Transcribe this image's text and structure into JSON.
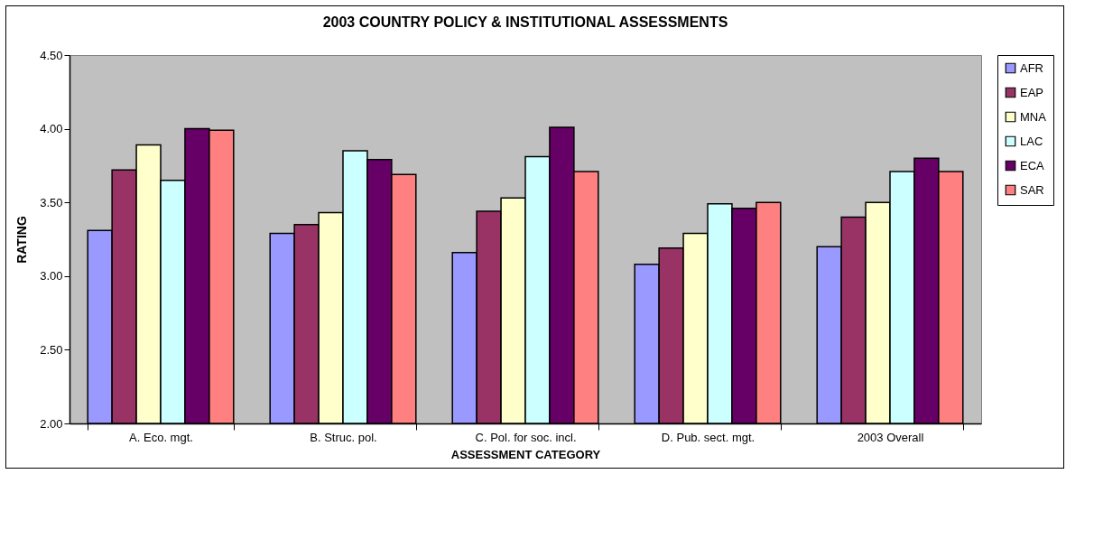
{
  "chart_data": {
    "type": "bar",
    "title": "2003 COUNTRY POLICY & INSTITUTIONAL ASSESSMENTS",
    "xlabel": "ASSESSMENT CATEGORY",
    "ylabel": "RATING",
    "categories": [
      "A. Eco. mgt.",
      "B. Struc. pol.",
      "C. Pol. for soc. incl.",
      "D. Pub. sect. mgt.",
      "2003 Overall"
    ],
    "series": [
      {
        "name": "AFR",
        "color": "#9999ff",
        "values": [
          3.31,
          3.29,
          3.16,
          3.08,
          3.2
        ]
      },
      {
        "name": "EAP",
        "color": "#993366",
        "values": [
          3.72,
          3.35,
          3.44,
          3.19,
          3.4
        ]
      },
      {
        "name": "MNA",
        "color": "#ffffcc",
        "values": [
          3.89,
          3.43,
          3.53,
          3.29,
          3.5
        ]
      },
      {
        "name": "LAC",
        "color": "#ccffff",
        "values": [
          3.65,
          3.85,
          3.81,
          3.49,
          3.71
        ]
      },
      {
        "name": "ECA",
        "color": "#660066",
        "values": [
          4.0,
          3.79,
          4.01,
          3.46,
          3.8
        ]
      },
      {
        "name": "SAR",
        "color": "#ff8080",
        "values": [
          3.99,
          3.69,
          3.71,
          3.5,
          3.71
        ]
      }
    ],
    "ylim": [
      2,
      4.5
    ],
    "yticks": [
      {
        "value": 2,
        "label": "2.00"
      },
      {
        "value": 2.5,
        "label": "2.50"
      },
      {
        "value": 3,
        "label": "3.00"
      },
      {
        "value": 3.5,
        "label": "3.50"
      },
      {
        "value": 4,
        "label": "4.00"
      },
      {
        "value": 4.5,
        "label": "4.50"
      }
    ],
    "grid": false,
    "legend": "right"
  }
}
